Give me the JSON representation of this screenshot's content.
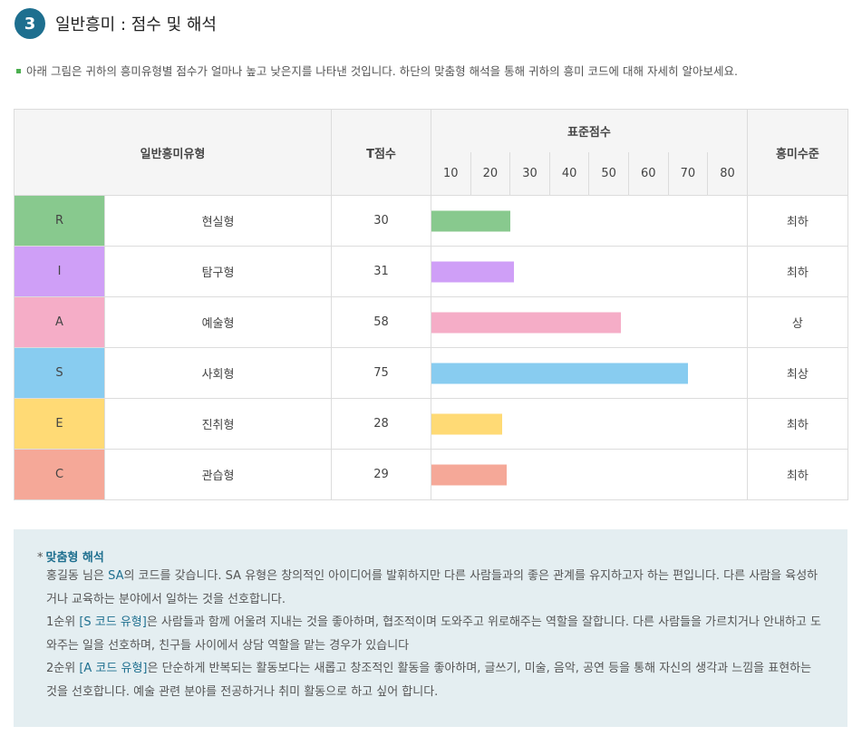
{
  "section": {
    "number": "3",
    "title": "일반흥미 : 점수 및 해석"
  },
  "intro": "아래 그림은 귀하의 흥미유형별 점수가 얼마나 높고 낮은지를 나타낸 것입니다. 하단의 맞춤형 해석을 통해 귀하의 흥미 코드에 대해 자세히 알아보세요.",
  "table": {
    "headers": {
      "type": "일반흥미유형",
      "tscore": "T점수",
      "standard": "표준점수",
      "level": "흥미수준"
    },
    "ticks": [
      "10",
      "20",
      "30",
      "40",
      "50",
      "60",
      "70",
      "80"
    ],
    "rows": [
      {
        "code": "R",
        "name": "현실형",
        "score": "30",
        "level": "최하",
        "color": "#88c98e"
      },
      {
        "code": "I",
        "name": "탐구형",
        "score": "31",
        "level": "최하",
        "color": "#cf9ff7"
      },
      {
        "code": "A",
        "name": "예술형",
        "score": "58",
        "level": "상",
        "color": "#f5adc7"
      },
      {
        "code": "S",
        "name": "사회형",
        "score": "75",
        "level": "최상",
        "color": "#88ccf0"
      },
      {
        "code": "E",
        "name": "진취형",
        "score": "28",
        "level": "최하",
        "color": "#ffda75"
      },
      {
        "code": "C",
        "name": "관습형",
        "score": "29",
        "level": "최하",
        "color": "#f5a898"
      }
    ]
  },
  "chart_data": {
    "type": "bar",
    "categories": [
      "현실형",
      "탐구형",
      "예술형",
      "사회형",
      "진취형",
      "관습형"
    ],
    "values": [
      30,
      31,
      58,
      75,
      28,
      29
    ],
    "xlabel": "표준점수",
    "ticks": [
      10,
      20,
      30,
      40,
      50,
      60,
      70,
      80
    ],
    "xlim": [
      10,
      90
    ],
    "colors": [
      "#88c98e",
      "#cf9ff7",
      "#f5adc7",
      "#88ccf0",
      "#ffda75",
      "#f5a898"
    ]
  },
  "interpretation": {
    "star": "*",
    "title": "맞춤형 해석",
    "p1": {
      "pre": "홍길동 님은 ",
      "code": "SA",
      "post": "의 코드를 갖습니다. SA 유형은 창의적인 아이디어를 발휘하지만 다른 사람들과의 좋은 관계를 유지하고자 하는 편입니다. 다른 사람을 육성하거나 교육하는 분야에서 일하는 것을 선호합니다."
    },
    "p2": {
      "pre": "1순위 ",
      "code": "[S 코드 유형]",
      "post": "은 사람들과 함께 어울려 지내는 것을 좋아하며, 협조적이며 도와주고 위로해주는 역할을 잘합니다. 다른 사람들을 가르치거나 안내하고 도와주는 일을 선호하며, 친구들 사이에서 상담 역할을 맡는 경우가 있습니다"
    },
    "p3": {
      "pre": "2순위 ",
      "code": "[A 코드 유형]",
      "post": "은 단순하게 반복되는 활동보다는 새롭고 창조적인 활동을 좋아하며, 글쓰기, 미술, 음악, 공연 등을 통해 자신의 생각과 느낌을 표현하는 것을 선호합니다. 예술 관련 분야를 전공하거나 취미 활동으로 하고 싶어 합니다."
    }
  }
}
